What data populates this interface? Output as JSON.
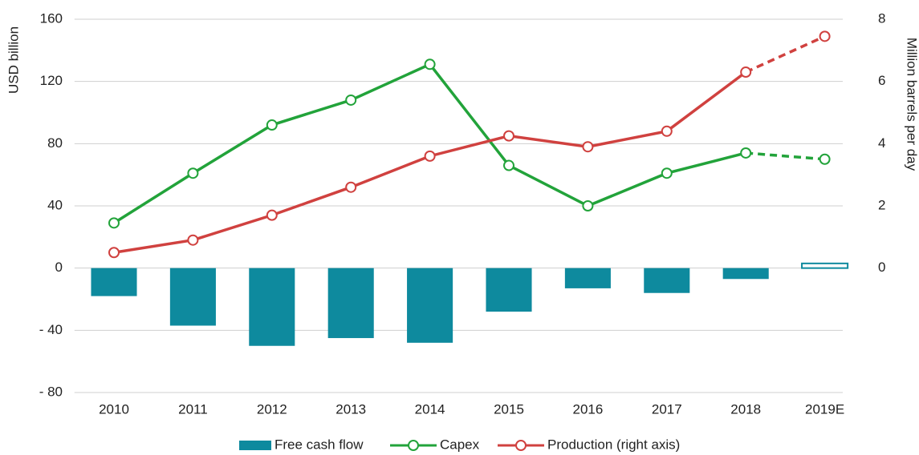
{
  "chart_data": {
    "type": "combo",
    "y_axis_label": "USD billion",
    "y2_axis_label": "Million barrels per day",
    "categories": [
      "2010",
      "2011",
      "2012",
      "2013",
      "2014",
      "2015",
      "2016",
      "2017",
      "2018",
      "2019E"
    ],
    "estimate_categories": [
      "2019E"
    ],
    "series": [
      {
        "name": "Free cash flow",
        "type": "bar",
        "color": "#0e8a9e",
        "axis": "y",
        "values": [
          -18,
          -37,
          -50,
          -45,
          -48,
          -28,
          -13,
          -16,
          -7,
          3
        ]
      },
      {
        "name": "Capex",
        "type": "line",
        "color": "#22a33a",
        "axis": "y",
        "values": [
          29,
          61,
          92,
          108,
          131,
          66,
          40,
          61,
          74,
          70
        ]
      },
      {
        "name": "Production (right axis)",
        "type": "line",
        "color": "#d0413f",
        "axis": "y2",
        "values": [
          0.5,
          0.9,
          1.7,
          2.6,
          3.6,
          4.25,
          3.9,
          4.4,
          6.3,
          7.45
        ]
      }
    ],
    "ylim": [
      -80,
      160
    ],
    "yticks": [
      {
        "value": -80,
        "label": "- 80"
      },
      {
        "value": -40,
        "label": "- 40"
      },
      0,
      40,
      80,
      120,
      160
    ],
    "y2lim": [
      -4,
      8
    ],
    "y2ticks": [
      0,
      2,
      4,
      6,
      8
    ],
    "grid": true,
    "legend": "bottom"
  }
}
